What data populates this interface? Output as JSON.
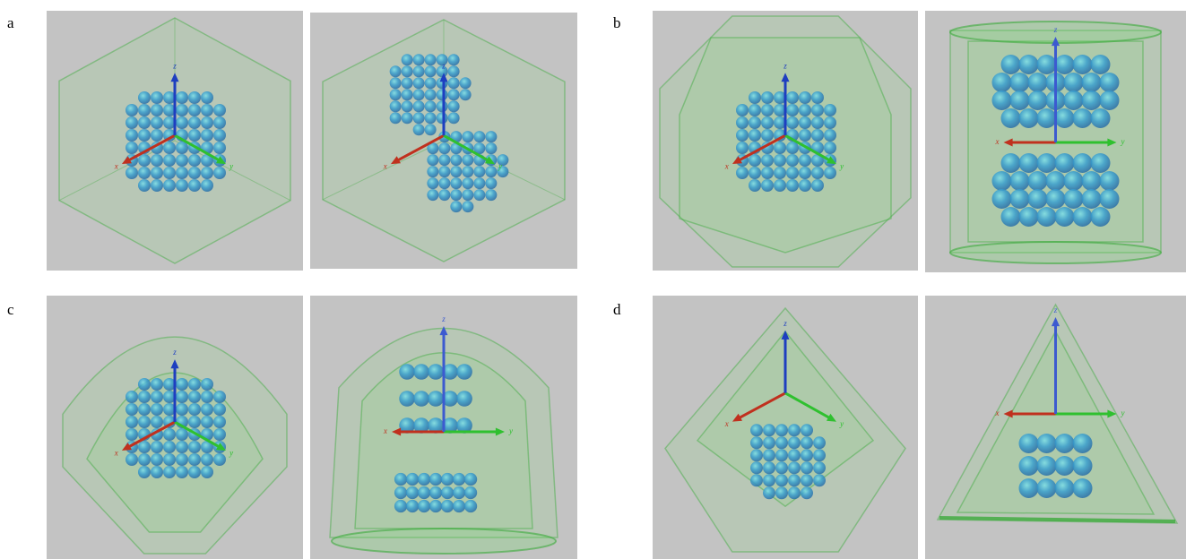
{
  "figure": {
    "panels": [
      {
        "label": "a",
        "views": [
          {
            "axis_labels": {
              "x": "x",
              "y": "y",
              "z": "z"
            }
          },
          {
            "axis_labels": {
              "x": "x",
              "y": "y",
              "z": "z"
            }
          }
        ]
      },
      {
        "label": "b",
        "views": [
          {
            "axis_labels": {
              "x": "x",
              "y": "y",
              "z": "z"
            }
          },
          {
            "axis_labels": {
              "x": "x",
              "y": "y",
              "z": "z"
            }
          }
        ]
      },
      {
        "label": "c",
        "views": [
          {
            "axis_labels": {
              "x": "x",
              "y": "y",
              "z": "z"
            }
          },
          {
            "axis_labels": {
              "x": "x",
              "y": "y",
              "z": "z"
            }
          }
        ]
      },
      {
        "label": "d",
        "views": [
          {
            "axis_labels": {
              "x": "x",
              "y": "y",
              "z": "z"
            }
          },
          {
            "axis_labels": {
              "x": "x",
              "y": "y",
              "z": "z"
            }
          }
        ]
      }
    ]
  }
}
